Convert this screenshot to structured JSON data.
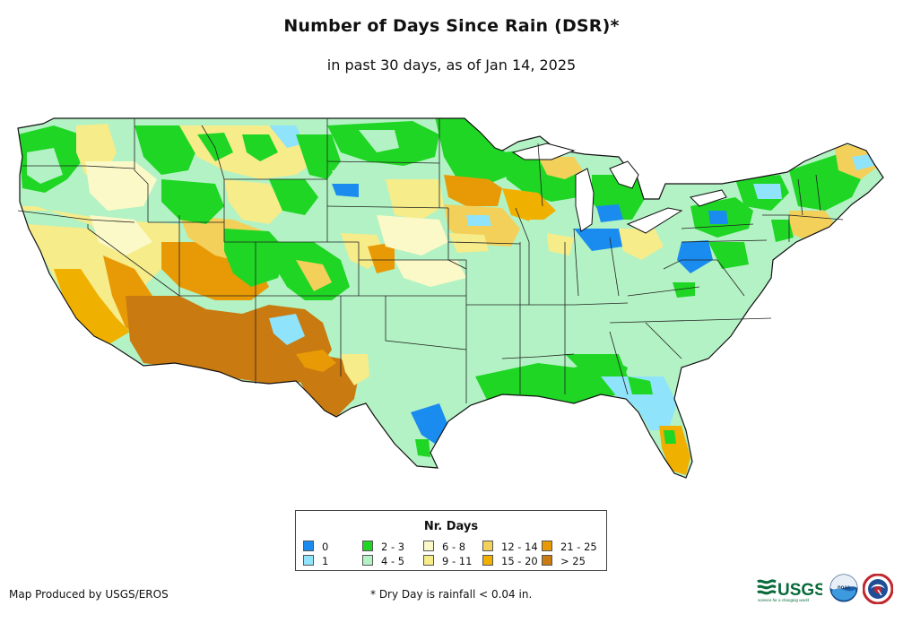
{
  "map": {
    "title": "Number of Days Since Rain (DSR)*",
    "subtitle": "in past 30 days, as of Jan 14, 2025",
    "region": "Contiguous United States"
  },
  "legend": {
    "title": "Nr. Days",
    "items": [
      {
        "label": "0",
        "color": "#1a8cf0"
      },
      {
        "label": "1",
        "color": "#8fe3fa"
      },
      {
        "label": "2 - 3",
        "color": "#1fd624"
      },
      {
        "label": "4 - 5",
        "color": "#b3f2c4"
      },
      {
        "label": "6 - 8",
        "color": "#fbf9c8"
      },
      {
        "label": "9 - 11",
        "color": "#f6ec8a"
      },
      {
        "label": "12 - 14",
        "color": "#f3d05a"
      },
      {
        "label": "15 - 20",
        "color": "#f0b000"
      },
      {
        "label": "21 - 25",
        "color": "#e89a06"
      },
      {
        "label": "> 25",
        "color": "#c97a10"
      }
    ]
  },
  "footer": {
    "credit": "Map Produced by USGS/EROS",
    "note": "* Dry Day is rainfall < 0.04 in."
  },
  "logos": {
    "usgs": {
      "text": "USGS",
      "tagline": "science for a changing world",
      "icon": "usgs-logo"
    },
    "noaa": {
      "text": "noaa",
      "icon": "noaa-logo"
    },
    "nws": {
      "icon": "national-weather-service-logo"
    }
  }
}
